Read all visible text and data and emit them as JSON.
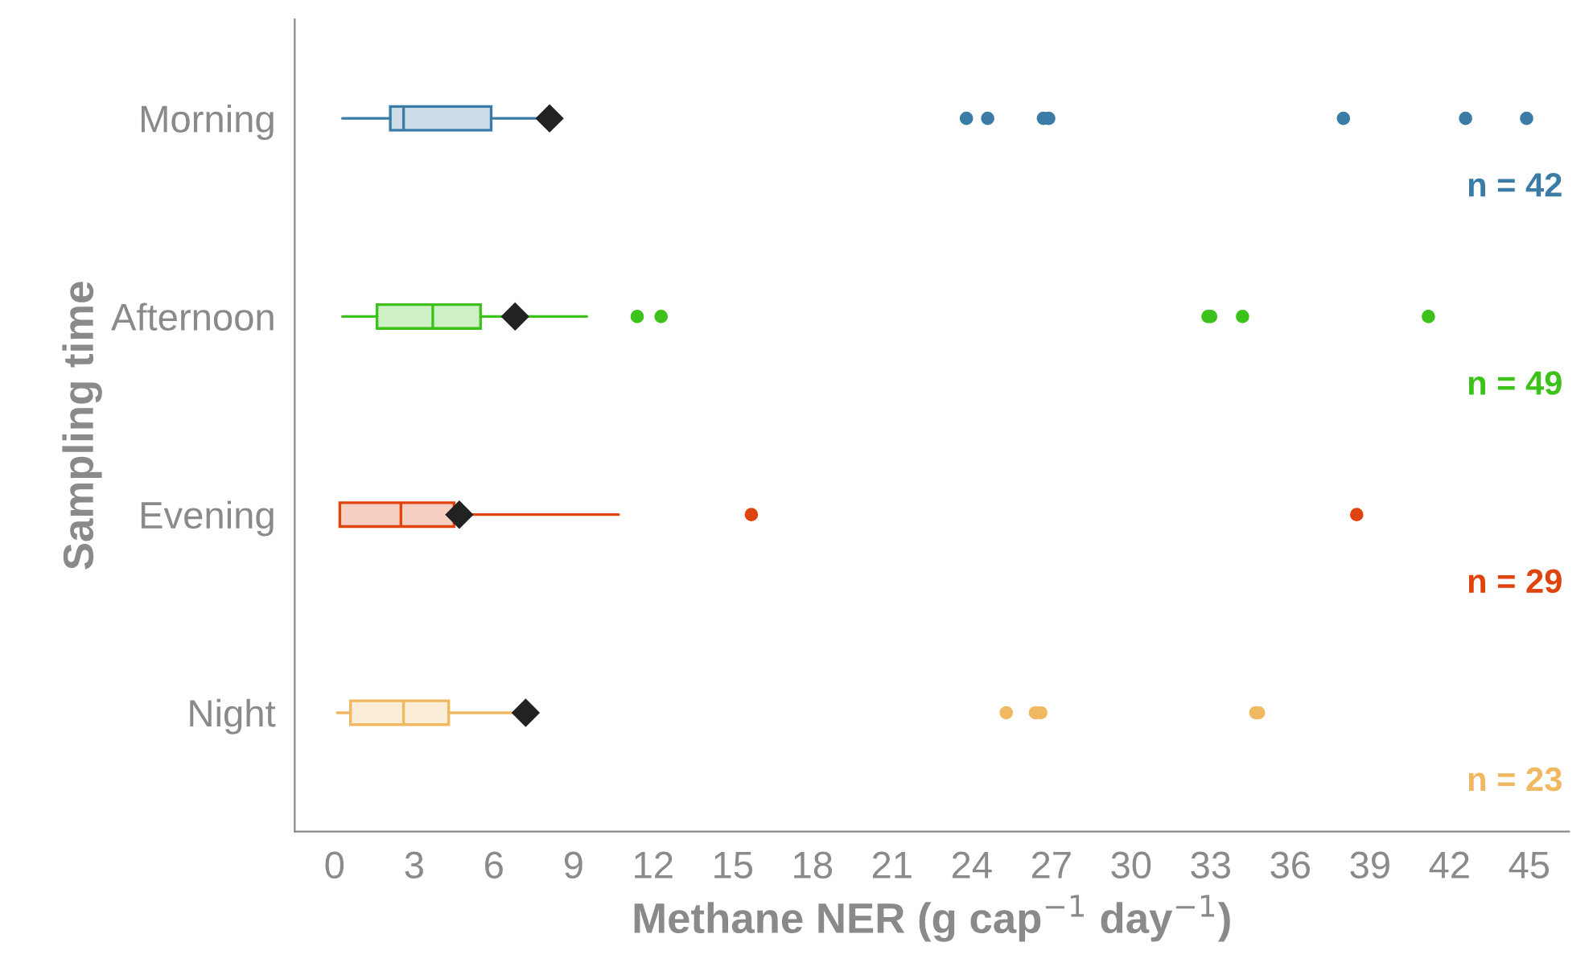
{
  "chart_data": {
    "type": "box",
    "orientation": "horizontal",
    "xlabel": "Methane NER (g cap$^{−1}$ day$^{−1}$)",
    "ylabel": "Sampling time",
    "categories": [
      "Morning",
      "Afternoon",
      "Evening",
      "Night"
    ],
    "colors": [
      "#3a7ca5",
      "#3cc21a",
      "#e0440e",
      "#f0b860"
    ],
    "boxes": [
      {
        "low": 0.3,
        "q1": 2.1,
        "median": 2.6,
        "q3": 5.9,
        "high": 8.0,
        "mean": 8.1,
        "outliers": [
          23.8,
          24.6,
          26.7,
          26.9,
          38.0,
          42.6,
          44.9
        ]
      },
      {
        "low": 0.3,
        "q1": 1.6,
        "median": 3.7,
        "q3": 5.5,
        "high": 9.5,
        "mean": 6.8,
        "outliers": [
          11.4,
          12.3,
          32.9,
          33.0,
          34.2,
          41.2
        ]
      },
      {
        "low": 0.2,
        "q1": 0.2,
        "median": 2.5,
        "q3": 4.5,
        "high": 10.7,
        "mean": 4.7,
        "outliers": [
          15.7,
          38.5
        ]
      },
      {
        "low": 0.1,
        "q1": 0.6,
        "median": 2.6,
        "q3": 4.3,
        "high": 7.0,
        "mean": 7.2,
        "outliers": [
          25.3,
          26.4,
          26.6,
          34.7,
          34.8
        ]
      }
    ],
    "xlim": [
      -1.5,
      46.5
    ],
    "xticks": [
      0,
      3,
      6,
      9,
      12,
      15,
      18,
      21,
      24,
      27,
      30,
      33,
      36,
      39,
      42,
      45
    ],
    "annotations": [
      "n = 42",
      "n = 49",
      "n = 29",
      "n = 23"
    ],
    "grid": false,
    "legend": false
  }
}
